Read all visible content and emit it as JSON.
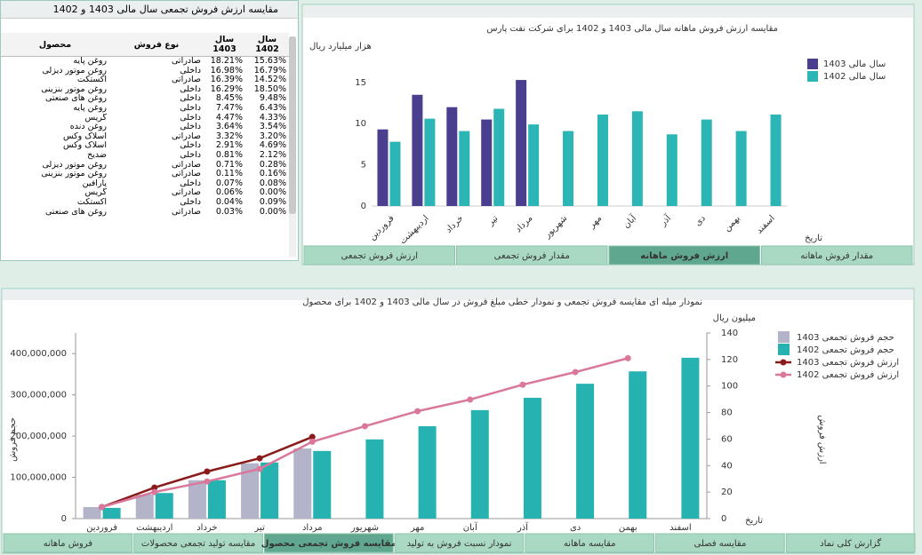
{
  "table_panel": {
    "title": "مقایسه ارزش فروش تجمعی سال مالی 1403 و 1402",
    "columns": [
      "محصول",
      "نوع فروش",
      "سال 1403",
      "سال 1402"
    ],
    "rows": [
      [
        "روغن پایه",
        "صادراتی",
        "18.21%",
        "15.63%"
      ],
      [
        "روغن موتور دیزلی",
        "داخلی",
        "16.98%",
        "16.79%"
      ],
      [
        "اکستکت",
        "صادراتی",
        "16.39%",
        "14.52%"
      ],
      [
        "روغن موتور بنزینی",
        "داخلی",
        "16.29%",
        "18.50%"
      ],
      [
        "روغن های صنعتی",
        "داخلی",
        "8.45%",
        "9.48%"
      ],
      [
        "روغن پایه",
        "داخلی",
        "7.47%",
        "6.43%"
      ],
      [
        "گریس",
        "داخلی",
        "4.47%",
        "4.33%"
      ],
      [
        "روغن دنده",
        "داخلی",
        "3.64%",
        "3.54%"
      ],
      [
        "اسلاک وکس",
        "صادراتی",
        "3.32%",
        "3.20%"
      ],
      [
        "اسلاک وکس",
        "داخلی",
        "2.91%",
        "4.69%"
      ],
      [
        "ضدیخ",
        "داخلی",
        "0.81%",
        "2.12%"
      ],
      [
        "روغن موتور دیزلی",
        "صادراتی",
        "0.71%",
        "0.28%"
      ],
      [
        "روغن موتور بنزینی",
        "صادراتی",
        "0.11%",
        "0.16%"
      ],
      [
        "پارافین",
        "داخلی",
        "0.07%",
        "0.08%"
      ],
      [
        "گریس",
        "صادراتی",
        "0.06%",
        "0.00%"
      ],
      [
        "اکستکت",
        "داخلی",
        "0.04%",
        "0.09%"
      ],
      [
        "روغن های صنعتی",
        "صادراتی",
        "0.03%",
        "0.00%"
      ]
    ]
  },
  "chart_data": [
    {
      "type": "bar",
      "title": "مقایسه ارزش فروش ماهانه سال مالی 1403 و 1402 برای شرکت نفت پارس",
      "y_label": "هزار میلیارد ریال",
      "x_label": "تاریخ",
      "categories": [
        "فروردین",
        "اردیبهشت",
        "خرداد",
        "تیر",
        "مرداد",
        "شهریور",
        "مهر",
        "آبان",
        "آذر",
        "دی",
        "بهمن",
        "اسفند"
      ],
      "series": [
        {
          "name": "سال مالی 1403",
          "color": "#4a3f8f",
          "values": [
            9.3,
            13.5,
            12.0,
            10.5,
            15.3,
            null,
            null,
            null,
            null,
            null,
            null,
            null
          ]
        },
        {
          "name": "سال مالی 1402",
          "color": "#2bb5b5",
          "values": [
            7.8,
            10.6,
            9.1,
            11.8,
            9.9,
            9.1,
            11.1,
            11.5,
            8.7,
            10.5,
            9.1,
            11.1
          ]
        }
      ],
      "ylim": [
        0,
        18
      ],
      "yticks": [
        0,
        5,
        10,
        15
      ],
      "grid": false
    },
    {
      "type": "combo",
      "title": "نمودار میله ای مقایسه فروش تجمعی و نمودار خطی مبلغ فروش در سال مالی 1403 و 1402 برای محصول",
      "y_label": "حجم فروش",
      "y2_label": "ارزش فروش",
      "y2_unit": "میلیون ریال",
      "x_label": "تاریخ",
      "categories": [
        "فروردین",
        "اردیبهشت",
        "خرداد",
        "تیر",
        "مرداد",
        "شهریور",
        "مهر",
        "آبان",
        "آذر",
        "دی",
        "بهمن",
        "اسفند"
      ],
      "series": [
        {
          "name": "حجم فروش تجمعی 1403",
          "type": "bar",
          "color": "#b3b3c9",
          "values": [
            28000000,
            58000000,
            93000000,
            134000000,
            170000000,
            null,
            null,
            null,
            null,
            null,
            null,
            null
          ]
        },
        {
          "name": "حجم فروش تجمعی 1402",
          "type": "bar",
          "color": "#26b2b0",
          "values": [
            26000000,
            62000000,
            93000000,
            136000000,
            164000000,
            192000000,
            224000000,
            263000000,
            293000000,
            327000000,
            357000000,
            390000000
          ]
        },
        {
          "name": "ارزش فروش تجمعی 1403",
          "type": "line",
          "axis": "y2",
          "color": "#8b1a1a",
          "values": [
            8.7,
            23.4,
            35.5,
            45.5,
            61.6,
            null,
            null,
            null,
            null,
            null,
            null,
            null
          ]
        },
        {
          "name": "ارزش فروش تجمعی 1402",
          "type": "line",
          "axis": "y2",
          "color": "#d9789a",
          "values": [
            8.7,
            20,
            28,
            37.5,
            58,
            69.7,
            81,
            89.8,
            101,
            110.5,
            121,
            null
          ]
        }
      ],
      "ylim": [
        0,
        450000000
      ],
      "yticks": [
        0,
        {
          "value": 100000000,
          "label": "100,000,000"
        },
        {
          "value": 200000000,
          "label": "200,000,000"
        },
        {
          "value": 300000000,
          "label": "300,000,000"
        },
        {
          "value": 400000000,
          "label": "400,000,000"
        }
      ],
      "y2lim": [
        0,
        140
      ],
      "y2ticks": [
        0,
        20,
        40,
        60,
        80,
        100,
        120,
        140
      ],
      "grid": false
    }
  ],
  "top_tabs": [
    {
      "label": "ارزش فروش تجمعی",
      "active": false
    },
    {
      "label": "مقدار فروش تجمعی",
      "active": false
    },
    {
      "label": "ارزش فروش ماهانه",
      "active": true
    },
    {
      "label": "مقدار فروش ماهانه",
      "active": false
    }
  ],
  "bottom_tabs": [
    {
      "label": "فروش ماهانه",
      "active": false
    },
    {
      "label": "مقایسه تولید تجمعی محصولات",
      "active": false
    },
    {
      "label": "مقایسه فروش تجمعی محصول",
      "active": true
    },
    {
      "label": "نمودار نسبت فروش به تولید",
      "active": false
    },
    {
      "label": "مقایسه ماهانه",
      "active": false
    },
    {
      "label": "مقایسه فصلی",
      "active": false
    },
    {
      "label": "گزارش کلی نماد",
      "active": false
    }
  ]
}
